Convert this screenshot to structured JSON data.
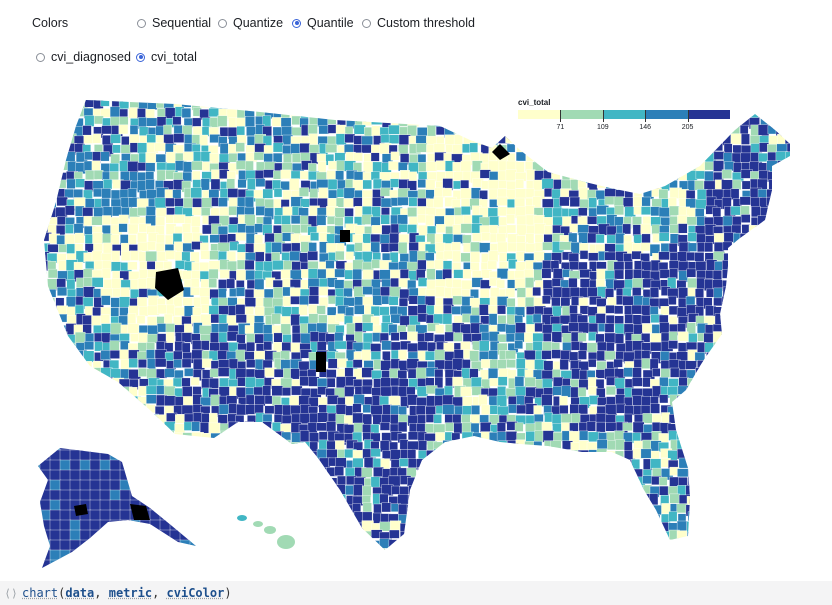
{
  "controls": {
    "colors_label": "Colors",
    "color_modes": [
      {
        "label": "Sequential",
        "selected": false
      },
      {
        "label": "Quantize",
        "selected": false
      },
      {
        "label": "Quantile",
        "selected": true
      },
      {
        "label": "Custom threshold",
        "selected": false
      }
    ],
    "metrics": [
      {
        "label": "cvi_diagnosed",
        "selected": false
      },
      {
        "label": "cvi_total",
        "selected": true
      }
    ]
  },
  "legend": {
    "title": "cvi_total",
    "ticks": [
      "71",
      "109",
      "146",
      "205"
    ],
    "colors": [
      "#ffffcc",
      "#a1dab4",
      "#41b6c4",
      "#2c7fb8",
      "#253494"
    ]
  },
  "map": {
    "palette": [
      "#ffffcc",
      "#a1dab4",
      "#41b6c4",
      "#2c7fb8",
      "#253494"
    ],
    "missing_color": "#000000"
  },
  "code": {
    "fn": "chart",
    "args": [
      "data",
      "metric",
      "cviColor"
    ]
  }
}
